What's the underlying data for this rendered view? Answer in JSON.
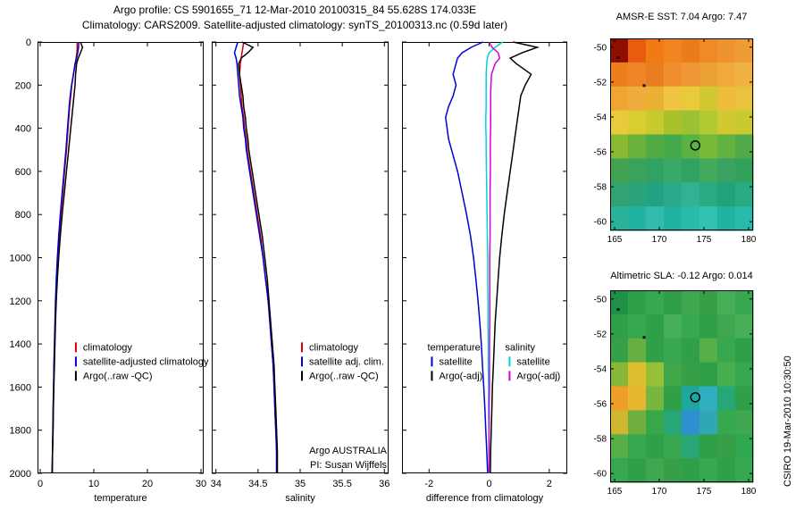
{
  "page": {
    "title_line1": "Argo profile: CS 5901655_71 12-Mar-2010 20100315_84 55.628S 174.033E",
    "title_line2": "Climatology: CARS2009. Satellite-adjusted climatology: synTS_20100313.nc (0.59d later)",
    "annotation_line1": "Argo AUSTRALIA",
    "annotation_line2": "PI: Susan Wijffels",
    "credit_vertical": "CSIRO 19-Mar-2010 10:30:50"
  },
  "chart_data": [
    {
      "id": "temperature-profile",
      "type": "line",
      "xlabel": "temperature",
      "xlim": [
        -0.5,
        30.5
      ],
      "xticks": [
        0,
        10,
        20,
        30
      ],
      "ylim": [
        0,
        2000
      ],
      "yticks": [
        0,
        200,
        400,
        600,
        800,
        1000,
        1200,
        1400,
        1600,
        1800,
        2000
      ],
      "show_ytick_labels": true,
      "depths": [
        0,
        25,
        50,
        75,
        100,
        150,
        200,
        250,
        300,
        350,
        400,
        450,
        500,
        600,
        700,
        800,
        900,
        1000,
        1100,
        1200,
        1300,
        1400,
        1500,
        1600,
        1700,
        1800,
        1900,
        2000
      ],
      "series": [
        {
          "name": "climatology",
          "color": "#d40000",
          "values": [
            6.9,
            6.9,
            6.85,
            6.7,
            6.5,
            6.2,
            5.9,
            5.7,
            5.5,
            5.35,
            5.2,
            5.05,
            4.9,
            4.55,
            4.2,
            3.85,
            3.55,
            3.3,
            3.1,
            2.95,
            2.8,
            2.7,
            2.6,
            2.5,
            2.45,
            2.4,
            2.3,
            2.25
          ]
        },
        {
          "name": "satellite-adjusted climatology",
          "color": "#0000d4",
          "values": [
            7.2,
            7.15,
            7.0,
            6.8,
            6.55,
            6.2,
            5.85,
            5.6,
            5.4,
            5.25,
            5.1,
            4.95,
            4.8,
            4.45,
            4.1,
            3.75,
            3.45,
            3.2,
            3.0,
            2.85,
            2.75,
            2.65,
            2.55,
            2.5,
            2.4,
            2.35,
            2.3,
            2.25
          ]
        },
        {
          "name": "Argo(..raw -QC)",
          "color": "#000000",
          "values": [
            7.5,
            7.9,
            7.5,
            7.1,
            6.8,
            6.6,
            6.5,
            6.3,
            6.1,
            5.9,
            5.7,
            5.5,
            5.3,
            4.9,
            4.5,
            4.1,
            3.75,
            3.45,
            3.2,
            3.0,
            2.85,
            2.75,
            2.65,
            2.55,
            2.45,
            2.4,
            2.3,
            2.2
          ]
        }
      ],
      "legend_groups": [
        {
          "x": 0.22,
          "y": 0.715,
          "entries": [
            {
              "series": 0,
              "label": "climatology"
            },
            {
              "series": 1,
              "label": "satellite-adjusted climatology"
            },
            {
              "series": 2,
              "label": "Argo(..raw -QC)"
            }
          ]
        }
      ]
    },
    {
      "id": "salinity-profile",
      "type": "line",
      "xlabel": "salinity",
      "xlim": [
        33.95,
        36.05
      ],
      "xticks": [
        34,
        34.5,
        35,
        35.5,
        36
      ],
      "ylim": [
        0,
        2000
      ],
      "yticks": [
        0,
        200,
        400,
        600,
        800,
        1000,
        1200,
        1400,
        1600,
        1800,
        2000
      ],
      "show_ytick_labels": false,
      "depths": [
        0,
        25,
        50,
        75,
        100,
        150,
        200,
        250,
        300,
        350,
        400,
        450,
        500,
        600,
        700,
        800,
        900,
        1000,
        1100,
        1200,
        1300,
        1400,
        1500,
        1600,
        1700,
        1800,
        1900,
        2000
      ],
      "series": [
        {
          "name": "climatology",
          "color": "#d40000",
          "values": [
            34.33,
            34.32,
            34.31,
            34.3,
            34.29,
            34.28,
            34.29,
            34.3,
            34.31,
            34.33,
            34.34,
            34.36,
            34.37,
            34.41,
            34.45,
            34.49,
            34.53,
            34.56,
            34.59,
            34.62,
            34.64,
            34.66,
            34.68,
            34.69,
            34.7,
            34.71,
            34.72,
            34.72
          ]
        },
        {
          "name": "satellite adj. clim.",
          "color": "#0000d4",
          "values": [
            34.26,
            34.24,
            34.22,
            34.24,
            34.25,
            34.26,
            34.27,
            34.28,
            34.3,
            34.32,
            34.33,
            34.35,
            34.36,
            34.4,
            34.44,
            34.48,
            34.52,
            34.56,
            34.59,
            34.62,
            34.64,
            34.66,
            34.68,
            34.69,
            34.7,
            34.71,
            34.72,
            34.72
          ]
        },
        {
          "name": "Argo(..raw -QC)",
          "color": "#000000",
          "values": [
            34.31,
            34.44,
            34.38,
            34.3,
            34.27,
            34.28,
            34.3,
            34.32,
            34.33,
            34.35,
            34.36,
            34.38,
            34.39,
            34.43,
            34.47,
            34.51,
            34.55,
            34.58,
            34.61,
            34.63,
            34.65,
            34.67,
            34.69,
            34.7,
            34.71,
            34.72,
            34.73,
            34.73
          ]
        }
      ],
      "legend_groups": [
        {
          "x": 0.5,
          "y": 0.715,
          "entries": [
            {
              "series": 0,
              "label": "climatology"
            },
            {
              "series": 1,
              "label": "satellite adj. clim."
            },
            {
              "series": 2,
              "label": "Argo(..raw -QC)"
            }
          ]
        }
      ]
    },
    {
      "id": "difference-profile",
      "type": "line",
      "xlabel": "difference from climatology",
      "xlim": [
        -2.9,
        2.6
      ],
      "xticks": [
        -2,
        0,
        2
      ],
      "ylim": [
        0,
        2000
      ],
      "yticks": [
        0,
        200,
        400,
        600,
        800,
        1000,
        1200,
        1400,
        1600,
        1800,
        2000
      ],
      "show_ytick_labels": false,
      "depths": [
        0,
        25,
        50,
        75,
        100,
        150,
        200,
        250,
        300,
        350,
        400,
        450,
        500,
        600,
        700,
        800,
        900,
        1000,
        1100,
        1200,
        1300,
        1400,
        1500,
        1600,
        1700,
        1800,
        1900,
        2000
      ],
      "series": [
        {
          "name": "temperature satellite",
          "color": "#0000d4",
          "values": [
            -0.2,
            -0.6,
            -0.9,
            -1.05,
            -1.1,
            -1.2,
            -1.1,
            -1.2,
            -1.35,
            -1.45,
            -1.4,
            -1.35,
            -1.25,
            -1.05,
            -0.9,
            -0.75,
            -0.62,
            -0.52,
            -0.44,
            -0.37,
            -0.31,
            -0.26,
            -0.22,
            -0.18,
            -0.14,
            -0.11,
            -0.08,
            -0.05
          ]
        },
        {
          "name": "temperature Argo(-adj)",
          "color": "#000000",
          "values": [
            0.8,
            1.6,
            1.1,
            0.7,
            0.9,
            1.4,
            1.2,
            1.05,
            1.0,
            0.95,
            0.9,
            0.85,
            0.8,
            0.7,
            0.6,
            0.5,
            0.42,
            0.35,
            0.3,
            0.25,
            0.2,
            0.17,
            0.14,
            0.11,
            0.09,
            0.07,
            0.05,
            0.04
          ]
        },
        {
          "name": "salinity satellite",
          "color": "#00d4d4",
          "values": [
            0.45,
            0.2,
            0.0,
            -0.06,
            -0.08,
            -0.1,
            -0.1,
            -0.1,
            -0.1,
            -0.11,
            -0.11,
            -0.1,
            -0.1,
            -0.09,
            -0.08,
            -0.07,
            -0.06,
            -0.05,
            -0.05,
            -0.04,
            -0.04,
            -0.03,
            -0.03,
            -0.02,
            -0.02,
            -0.01,
            -0.01,
            0.0
          ]
        },
        {
          "name": "salinity Argo(-adj)",
          "color": "#d400d4",
          "values": [
            0.0,
            0.1,
            0.3,
            0.35,
            0.2,
            0.08,
            0.06,
            0.05,
            0.05,
            0.05,
            0.05,
            0.04,
            0.04,
            0.04,
            0.03,
            0.03,
            0.03,
            0.02,
            0.02,
            0.02,
            0.02,
            0.01,
            0.01,
            0.01,
            0.0,
            0.0,
            0.0,
            0.0
          ]
        }
      ],
      "legend_groups": [
        {
          "title": "temperature",
          "x": 0.17,
          "y": 0.715,
          "entries": [
            {
              "series": 0,
              "label": "satellite"
            },
            {
              "series": 1,
              "label": "Argo(-adj)"
            }
          ]
        },
        {
          "title": "salinity",
          "x": 0.64,
          "y": 0.715,
          "entries": [
            {
              "series": 2,
              "label": "satellite"
            },
            {
              "series": 3,
              "label": "Argo(-adj)"
            }
          ]
        }
      ]
    },
    {
      "id": "sst-map",
      "type": "heatmap",
      "title": "AMSR-E SST: 7.04 Argo: 7.47",
      "lon_range": [
        164.5,
        180.5
      ],
      "lat_range": [
        -60.5,
        -49.5
      ],
      "xticks": [
        165,
        170,
        175,
        180
      ],
      "yticks": [
        -50,
        -52,
        -54,
        -56,
        -58,
        -60
      ],
      "marker": {
        "lon": 174.03,
        "lat": -55.63
      },
      "specks": [
        [
          165.4,
          -50.6
        ],
        [
          168.3,
          -52.2
        ]
      ],
      "grid": [
        [
          "#8f0e00",
          "#e85c10",
          "#ef7a16",
          "#ef8420",
          "#ea7d1a",
          "#f08a26",
          "#ef9330",
          "#ef9c38"
        ],
        [
          "#ee7d1e",
          "#ef8526",
          "#e87e20",
          "#f08e2e",
          "#ef9736",
          "#eaa132",
          "#f0aa3a",
          "#efb242"
        ],
        [
          "#efa434",
          "#f0ac3c",
          "#e9b233",
          "#f0c342",
          "#e9ca3a",
          "#d2c832",
          "#eebc3b",
          "#e9c340"
        ],
        [
          "#e9ca3a",
          "#d9cd32",
          "#c9c930",
          "#aac22a",
          "#9ac232",
          "#b2ca32",
          "#d2c832",
          "#c9c930"
        ],
        [
          "#8aba32",
          "#6ab23a",
          "#52aa42",
          "#42aa4a",
          "#5ab242",
          "#7aba3a",
          "#62b242",
          "#52aa4a"
        ],
        [
          "#42a252",
          "#3aa25a",
          "#32a262",
          "#3aaa6a",
          "#32a262",
          "#42aa5a",
          "#3aa262",
          "#32a25a"
        ],
        [
          "#32a272",
          "#2aa27a",
          "#22a282",
          "#2aaa8a",
          "#32b292",
          "#2aaa82",
          "#22a27a",
          "#2aaa82"
        ],
        [
          "#2ab29a",
          "#22b2a2",
          "#32baaa",
          "#22b2a2",
          "#2abaaa",
          "#32c2b2",
          "#22b2a2",
          "#2abaaa"
        ]
      ]
    },
    {
      "id": "sla-map",
      "type": "heatmap",
      "title": "Altimetric SLA: -0.12 Argo: 0.014",
      "lon_range": [
        164.5,
        180.5
      ],
      "lat_range": [
        -60.5,
        -49.5
      ],
      "xticks": [
        165,
        170,
        175,
        180
      ],
      "yticks": [
        -50,
        -52,
        -54,
        -56,
        -58,
        -60
      ],
      "marker": {
        "lon": 174.03,
        "lat": -55.63
      },
      "specks": [
        [
          165.4,
          -50.6
        ],
        [
          168.3,
          -52.2
        ]
      ],
      "grid": [
        [
          "#1f9048",
          "#2f9f48",
          "#37a750",
          "#2f9f48",
          "#3fa750",
          "#379f48",
          "#47af58",
          "#37a750"
        ],
        [
          "#2f9f48",
          "#37a750",
          "#2f9f48",
          "#47af58",
          "#37a750",
          "#2f9f48",
          "#3fa750",
          "#47af58"
        ],
        [
          "#379f48",
          "#67af40",
          "#2f9f48",
          "#37a750",
          "#2f9f48",
          "#57af48",
          "#37a750",
          "#2f9f48"
        ],
        [
          "#87b738",
          "#dfbf30",
          "#97bf38",
          "#3fa748",
          "#379f48",
          "#2f9f48",
          "#47af50",
          "#37a750"
        ],
        [
          "#ef9f28",
          "#e7b730",
          "#77b740",
          "#2f9f48",
          "#1fa79f",
          "#2fafbf",
          "#27a777",
          "#2f9f48"
        ],
        [
          "#cfb730",
          "#6faf40",
          "#37a748",
          "#27a777",
          "#2f8fcf",
          "#2fa7b7",
          "#37a750",
          "#3fa750"
        ],
        [
          "#57af48",
          "#37a750",
          "#2f9f48",
          "#37a750",
          "#27a777",
          "#2f9f48",
          "#379f48",
          "#2fa750"
        ],
        [
          "#37a750",
          "#2f9f48",
          "#3fa750",
          "#379f48",
          "#2f9f48",
          "#37a750",
          "#2f9f48",
          "#37a750"
        ]
      ]
    }
  ]
}
